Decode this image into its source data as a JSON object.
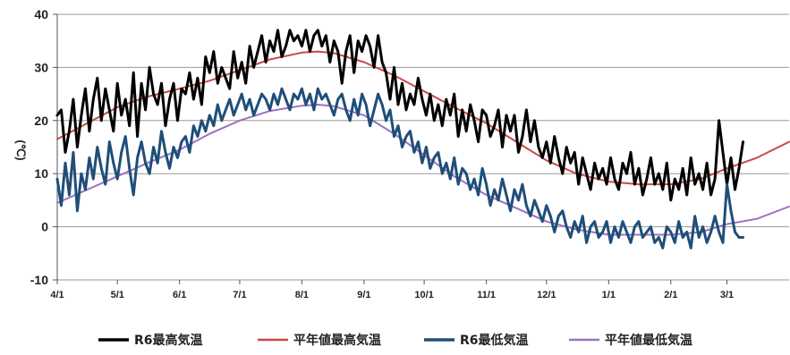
{
  "chart_data": {
    "type": "line",
    "ylabel": "(℃)",
    "ylim": [
      -10,
      40
    ],
    "yticks": [
      -10,
      0,
      10,
      20,
      30,
      40
    ],
    "y_tick_labels": [
      "-10",
      "0",
      "10",
      "20",
      "30",
      "40"
    ],
    "xlim": [
      0,
      365
    ],
    "x_ticks": [
      {
        "day": 0,
        "label": "4/1"
      },
      {
        "day": 30,
        "label": "5/1"
      },
      {
        "day": 61,
        "label": "6/1"
      },
      {
        "day": 91,
        "label": "7/1"
      },
      {
        "day": 122,
        "label": "8/1"
      },
      {
        "day": 153,
        "label": "9/1"
      },
      {
        "day": 183,
        "label": "10/1"
      },
      {
        "day": 214,
        "label": "11/1"
      },
      {
        "day": 244,
        "label": "12/1"
      },
      {
        "day": 275,
        "label": "1/1"
      },
      {
        "day": 306,
        "label": "2/1"
      },
      {
        "day": 334,
        "label": "3/1"
      }
    ],
    "grid": true,
    "legend_position": "bottom",
    "series": [
      {
        "name": "R6最高気温",
        "color": "#000000",
        "width": 3,
        "x": [
          0,
          2,
          4,
          6,
          8,
          10,
          12,
          14,
          16,
          18,
          20,
          22,
          24,
          26,
          28,
          30,
          32,
          34,
          36,
          38,
          40,
          42,
          44,
          46,
          48,
          50,
          52,
          54,
          56,
          58,
          60,
          62,
          64,
          66,
          68,
          70,
          72,
          74,
          76,
          78,
          80,
          82,
          84,
          86,
          88,
          90,
          92,
          94,
          96,
          98,
          100,
          102,
          104,
          106,
          108,
          110,
          112,
          114,
          116,
          118,
          120,
          122,
          124,
          126,
          128,
          130,
          132,
          134,
          136,
          138,
          140,
          142,
          144,
          146,
          148,
          150,
          152,
          154,
          156,
          158,
          160,
          162,
          164,
          166,
          168,
          170,
          172,
          174,
          176,
          178,
          180,
          182,
          184,
          186,
          188,
          190,
          192,
          194,
          196,
          198,
          200,
          202,
          204,
          206,
          208,
          210,
          212,
          214,
          216,
          218,
          220,
          222,
          224,
          226,
          228,
          230,
          232,
          234,
          236,
          238,
          240,
          242,
          244,
          246,
          248,
          250,
          252,
          254,
          256,
          258,
          260,
          262,
          264,
          266,
          268,
          270,
          272,
          274,
          276,
          278,
          280,
          282,
          284,
          286,
          288,
          290,
          292,
          294,
          296,
          298,
          300,
          302,
          304,
          306,
          308,
          310,
          312,
          314,
          316,
          318,
          320,
          322,
          324,
          326,
          328,
          330,
          332,
          334,
          336,
          338,
          340,
          342
        ],
        "values": [
          21,
          22,
          14,
          18,
          24,
          15,
          21,
          26,
          18,
          24,
          28,
          20,
          26,
          22,
          18,
          27,
          21,
          24,
          19,
          29,
          17,
          27,
          22,
          30,
          25,
          23,
          27,
          19,
          24,
          27,
          20,
          26,
          25,
          29,
          24,
          28,
          23,
          32,
          29,
          33,
          27,
          30,
          28,
          26,
          33,
          28,
          31,
          27,
          34,
          30,
          33,
          36,
          31,
          35,
          33,
          37,
          32,
          34,
          37,
          35,
          36,
          34,
          37,
          33,
          36,
          37,
          34,
          36,
          31,
          35,
          33,
          27,
          33,
          36,
          29,
          35,
          33,
          36,
          34,
          30,
          36,
          31,
          29,
          24,
          30,
          23,
          27,
          22,
          25,
          23,
          28,
          24,
          21,
          25,
          20,
          23,
          19,
          24,
          21,
          25,
          17,
          22,
          18,
          23,
          20,
          16,
          22,
          21,
          17,
          19,
          22,
          15,
          21,
          18,
          21,
          14,
          17,
          22,
          16,
          20,
          15,
          13,
          16,
          12,
          17,
          13,
          10,
          15,
          12,
          14,
          8,
          13,
          10,
          7,
          12,
          9,
          11,
          8,
          13,
          9,
          7,
          12,
          10,
          14,
          8,
          11,
          6,
          9,
          13,
          8,
          10,
          7,
          12,
          5,
          9,
          7,
          11,
          6,
          13,
          8,
          10,
          7,
          12,
          6,
          9,
          20,
          14,
          8,
          13,
          7,
          11,
          16
        ]
      },
      {
        "name": "平年値最高気温",
        "color": "#c94a45",
        "width": 2,
        "x": [
          0,
          15,
          30,
          45,
          61,
          76,
          91,
          106,
          122,
          130,
          138,
          153,
          168,
          183,
          198,
          214,
          229,
          244,
          259,
          275,
          290,
          306,
          321,
          334,
          349,
          365
        ],
        "values": [
          16.5,
          19.5,
          22.5,
          24.5,
          26.0,
          27.5,
          29.5,
          31.5,
          32.8,
          33.0,
          32.7,
          31.0,
          28.5,
          25.5,
          22.5,
          19.5,
          16.0,
          12.5,
          10.0,
          8.5,
          8.0,
          8.0,
          9.0,
          11.0,
          13.0,
          16.0
        ]
      },
      {
        "name": "R6最低気温",
        "color": "#1f4e79",
        "width": 3,
        "x": [
          0,
          2,
          4,
          6,
          8,
          10,
          12,
          14,
          16,
          18,
          20,
          22,
          24,
          26,
          28,
          30,
          32,
          34,
          36,
          38,
          40,
          42,
          44,
          46,
          48,
          50,
          52,
          54,
          56,
          58,
          60,
          62,
          64,
          66,
          68,
          70,
          72,
          74,
          76,
          78,
          80,
          82,
          84,
          86,
          88,
          90,
          92,
          94,
          96,
          98,
          100,
          102,
          104,
          106,
          108,
          110,
          112,
          114,
          116,
          118,
          120,
          122,
          124,
          126,
          128,
          130,
          132,
          134,
          136,
          138,
          140,
          142,
          144,
          146,
          148,
          150,
          152,
          154,
          156,
          158,
          160,
          162,
          164,
          166,
          168,
          170,
          172,
          174,
          176,
          178,
          180,
          182,
          184,
          186,
          188,
          190,
          192,
          194,
          196,
          198,
          200,
          202,
          204,
          206,
          208,
          210,
          212,
          214,
          216,
          218,
          220,
          222,
          224,
          226,
          228,
          230,
          232,
          234,
          236,
          238,
          240,
          242,
          244,
          246,
          248,
          250,
          252,
          254,
          256,
          258,
          260,
          262,
          264,
          266,
          268,
          270,
          272,
          274,
          276,
          278,
          280,
          282,
          284,
          286,
          288,
          290,
          292,
          294,
          296,
          298,
          300,
          302,
          304,
          306,
          308,
          310,
          312,
          314,
          316,
          318,
          320,
          322,
          324,
          326,
          328,
          330,
          332,
          334,
          336,
          338,
          340,
          342
        ],
        "values": [
          9,
          4,
          12,
          6,
          14,
          3,
          10,
          7,
          13,
          9,
          15,
          11,
          8,
          16,
          12,
          9,
          14,
          17,
          11,
          6,
          13,
          16,
          12,
          10,
          15,
          12,
          18,
          14,
          11,
          15,
          13,
          16,
          17,
          14,
          19,
          17,
          20,
          18,
          21,
          19,
          23,
          20,
          22,
          24,
          21,
          23,
          25,
          22,
          24,
          21,
          23,
          25,
          24,
          22,
          25,
          23,
          26,
          24,
          22,
          25,
          24,
          26,
          23,
          25,
          22,
          26,
          24,
          25,
          23,
          21,
          24,
          25,
          22,
          20,
          24,
          21,
          25,
          23,
          19,
          22,
          25,
          23,
          20,
          22,
          17,
          19,
          15,
          17,
          18,
          14,
          16,
          12,
          15,
          11,
          13,
          14,
          10,
          12,
          9,
          13,
          8,
          11,
          10,
          7,
          9,
          6,
          11,
          8,
          4,
          7,
          5,
          9,
          6,
          3,
          7,
          5,
          8,
          4,
          2,
          5,
          3,
          1,
          4,
          2,
          -1,
          2,
          3,
          0,
          -2,
          1,
          -1,
          2,
          -3,
          0,
          1,
          -2,
          -1,
          1,
          -3,
          0,
          -2,
          1,
          -1,
          -3,
          0,
          1,
          -2,
          -1,
          0,
          -3,
          -2,
          -4,
          0,
          -1,
          -3,
          1,
          -2,
          -1,
          -4,
          2,
          -2,
          0,
          -3,
          -1,
          2,
          -1,
          -3,
          8,
          3,
          -1,
          -2,
          -2
        ]
      },
      {
        "name": "平年値最低気温",
        "color": "#9b72c2",
        "width": 2,
        "x": [
          0,
          15,
          30,
          45,
          61,
          76,
          91,
          106,
          122,
          130,
          138,
          153,
          168,
          183,
          198,
          214,
          229,
          244,
          259,
          275,
          290,
          306,
          321,
          334,
          349,
          365
        ],
        "values": [
          4.5,
          7.0,
          9.5,
          12.0,
          14.5,
          17.5,
          20.0,
          21.8,
          22.8,
          23.0,
          22.7,
          21.0,
          17.5,
          13.5,
          9.5,
          6.0,
          3.5,
          1.0,
          -0.5,
          -1.5,
          -1.5,
          -1.5,
          -1.0,
          0.5,
          1.5,
          3.8
        ]
      }
    ]
  }
}
